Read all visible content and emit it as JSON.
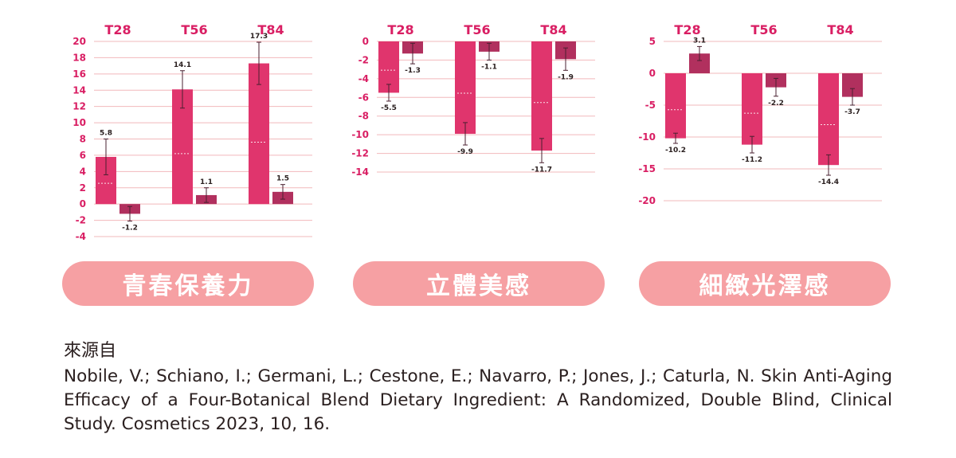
{
  "colors": {
    "primary_bar": "#e0356d",
    "secondary_bar": "#b1305e",
    "axis_label": "#d91e63",
    "grid": "#f2b8bb",
    "pill": "#f6a0a3"
  },
  "chart_data": [
    {
      "type": "bar",
      "categories": [
        "T28",
        "T56",
        "T84"
      ],
      "series": [
        {
          "values": [
            5.8,
            14.1,
            17.3
          ],
          "errors": [
            2.2,
            2.3,
            2.6
          ]
        },
        {
          "values": [
            -1.2,
            1.1,
            1.5
          ],
          "errors": [
            0.9,
            0.9,
            0.9
          ]
        }
      ],
      "ylim": [
        -4,
        20
      ],
      "yticks": [
        20,
        18,
        16,
        14,
        12,
        10,
        8,
        6,
        4,
        2,
        0,
        -2,
        -4
      ],
      "grid": true,
      "label": "青春保養力"
    },
    {
      "type": "bar",
      "categories": [
        "T28",
        "T56",
        "T84"
      ],
      "series": [
        {
          "values": [
            -5.5,
            -9.9,
            -11.7
          ],
          "errors": [
            0.9,
            1.2,
            1.3
          ]
        },
        {
          "values": [
            -1.3,
            -1.1,
            -1.9
          ],
          "errors": [
            1.1,
            0.9,
            1.2
          ]
        }
      ],
      "ylim": [
        -14,
        0
      ],
      "yticks": [
        0,
        -2,
        -4,
        -6,
        -8,
        -10,
        -12,
        -14
      ],
      "grid": true,
      "label": "立體美感"
    },
    {
      "type": "bar",
      "categories": [
        "T28",
        "T56",
        "T84"
      ],
      "series": [
        {
          "values": [
            -10.2,
            -11.2,
            -14.4
          ],
          "errors": [
            0.8,
            1.3,
            1.6
          ]
        },
        {
          "values": [
            3.1,
            -2.2,
            -3.7
          ],
          "errors": [
            1.1,
            1.4,
            1.3
          ]
        }
      ],
      "ylim": [
        -20,
        5
      ],
      "yticks": [
        5,
        0,
        -5,
        -10,
        -15,
        -20
      ],
      "grid": true,
      "label": "細緻光澤感"
    }
  ],
  "source": {
    "title": "來源自",
    "text": "Nobile, V.; Schiano, I.; Germani, L.; Cestone, E.; Navarro, P.; Jones, J.; Caturla, N. Skin Anti-Aging Efficacy of a Four-Botanical Blend Dietary Ingredient: A Randomized, Double Blind, Clinical Study. Cosmetics 2023, 10, 16."
  }
}
